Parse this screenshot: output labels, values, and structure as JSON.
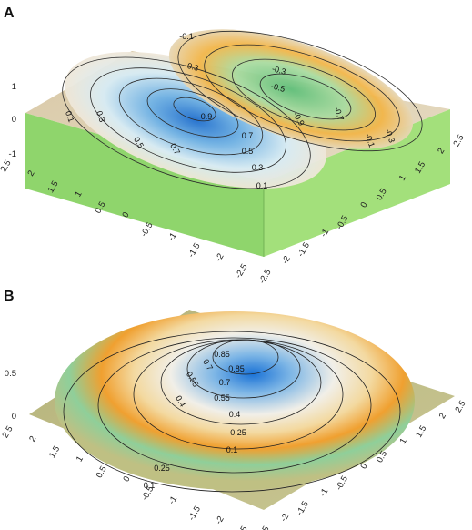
{
  "chart_data": [
    {
      "panel_label": "A",
      "type": "surface",
      "description_values": {
        "x_ticks": [
          "-2.5",
          "-2",
          "-1.5",
          "-1",
          "-0.5",
          "0",
          "0.5",
          "1",
          "1.5",
          "2",
          "2.5"
        ],
        "y_ticks": [
          "-2.5",
          "-2",
          "-1.5",
          "-1",
          "-0.5",
          "0",
          "0.5",
          "1",
          "1.5",
          "2",
          "2.5"
        ],
        "z_ticks": [
          "-1",
          "0",
          "1"
        ]
      },
      "x_ticks": [
        "2.5",
        "2",
        "1.5",
        "1",
        "0.5",
        "0",
        "-0.5",
        "-1",
        "-1.5",
        "-2",
        "-2.5"
      ],
      "y_ticks": [
        "-2.5",
        "-2",
        "-1.5",
        "-1",
        "-0.5",
        "0",
        "0.5",
        "1",
        "1.5",
        "2",
        "2.5"
      ],
      "z_ticks": [
        "-1",
        "0",
        "1"
      ],
      "xlim": [
        -2.5,
        2.5
      ],
      "ylim": [
        -2.5,
        2.5
      ],
      "zlim": [
        -1,
        1
      ],
      "contour_levels": [
        "-0.1",
        "-0.3",
        "-0.5",
        "-0.7",
        "-0.9",
        "0.1",
        "0.3",
        "0.5",
        "0.7",
        "0.9"
      ],
      "contour_labels": [
        "-0.1",
        "-0.3",
        "-0.3",
        "-0.5",
        "-0.9",
        "-0.7",
        "-0.3",
        "-0.1",
        "0.1",
        "0.3",
        "0.5",
        "0.7",
        "0.9",
        "0.1",
        "0.3",
        "0.5",
        "0.7"
      ],
      "colors": {
        "positive_peak": "#2f7fd6",
        "negative_peak": "#7fcf8a",
        "mid": "#f0a33a",
        "base": "#d9c7a3",
        "side": "#8fd46b"
      }
    },
    {
      "panel_label": "B",
      "type": "surface",
      "x_ticks": [
        "2.5",
        "2",
        "1.5",
        "1",
        "0.5",
        "0",
        "-0.5",
        "-1",
        "-1.5",
        "-2",
        "-2.5"
      ],
      "y_ticks": [
        "-2.5",
        "-2",
        "-1.5",
        "-1",
        "-0.5",
        "0",
        "0.5",
        "1",
        "1.5",
        "2",
        "2.5"
      ],
      "z_ticks": [
        "0",
        "0.5"
      ],
      "xlim": [
        -2.5,
        2.5
      ],
      "ylim": [
        -2.5,
        2.5
      ],
      "zlim": [
        0,
        1
      ],
      "contour_levels": [
        "0.1",
        "0.25",
        "0.4",
        "0.55",
        "0.7",
        "0.85"
      ],
      "contour_labels": [
        "0.85",
        "0.7",
        "0.55",
        "0.4",
        "0.25",
        "0.1",
        "0.1",
        "0.25",
        "0.4",
        "0.55",
        "0.7",
        "0.85"
      ],
      "colors": {
        "peak": "#1f7ed8",
        "mid": "#f0a033",
        "low": "#6fbf83",
        "base": "#b9b97a"
      }
    }
  ]
}
